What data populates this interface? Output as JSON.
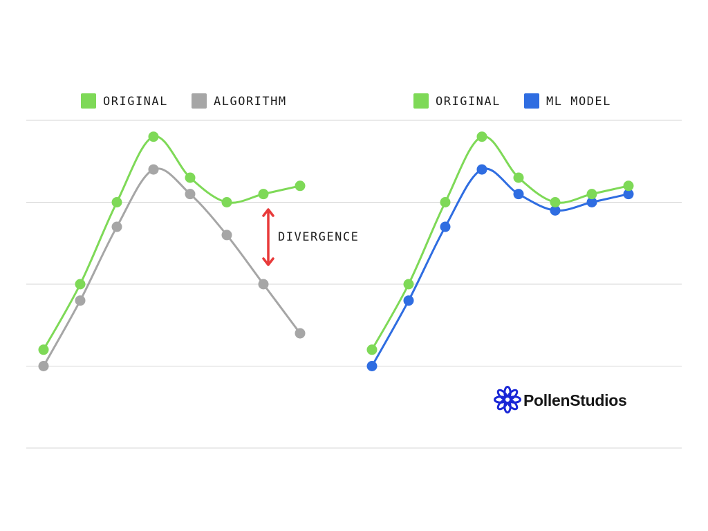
{
  "chart_data": [
    {
      "type": "line",
      "x": [
        1,
        2,
        3,
        4,
        5,
        6,
        7,
        8
      ],
      "ylim": [
        0,
        4
      ],
      "grid": true,
      "legend_position": "top",
      "series": [
        {
          "name": "ORIGINAL",
          "color": "#7ed957",
          "values": [
            1.2,
            2.0,
            3.0,
            3.8,
            3.3,
            3.0,
            3.1,
            3.2
          ]
        },
        {
          "name": "ALGORITHM",
          "color": "#a6a6a6",
          "values": [
            1.0,
            1.8,
            2.7,
            3.4,
            3.1,
            2.6,
            2.0,
            1.4
          ]
        }
      ],
      "annotation": {
        "text": "DIVERGENCE",
        "color": "#e83a3a"
      }
    },
    {
      "type": "line",
      "x": [
        1,
        2,
        3,
        4,
        5,
        6,
        7,
        8
      ],
      "ylim": [
        0,
        4
      ],
      "grid": true,
      "legend_position": "top",
      "series": [
        {
          "name": "ORIGINAL",
          "color": "#7ed957",
          "values": [
            1.2,
            2.0,
            3.0,
            3.8,
            3.3,
            3.0,
            3.1,
            3.2
          ]
        },
        {
          "name": "ML MODEL",
          "color": "#2f6de1",
          "values": [
            1.0,
            1.8,
            2.7,
            3.4,
            3.1,
            2.9,
            3.0,
            3.1
          ]
        }
      ]
    }
  ],
  "brand": {
    "name": "PollenStudios",
    "color": "#1a27d6"
  },
  "gridline_color": "#d4d4d4"
}
